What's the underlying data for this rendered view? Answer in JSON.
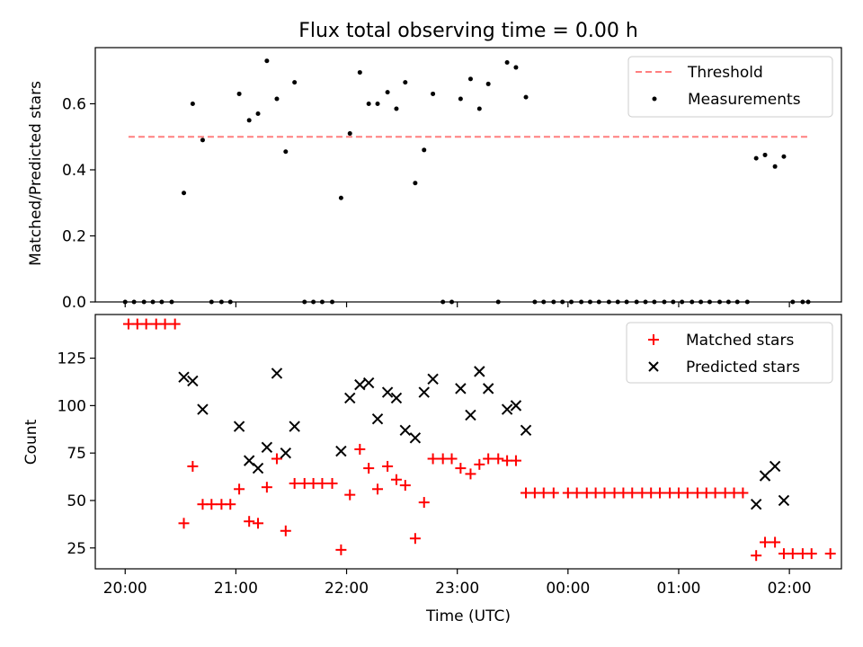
{
  "figure": {
    "title": "Flux total observing time = 0.00 h",
    "xlabel": "Time (UTC)",
    "x_ticks": [
      "20:00",
      "21:00",
      "22:00",
      "23:00",
      "00:00",
      "01:00",
      "02:00"
    ]
  },
  "chart_data": [
    {
      "type": "scatter",
      "ylabel": "Matched/Predicted stars",
      "xlim": [
        -0.27,
        6.47
      ],
      "ylim": [
        0,
        0.77
      ],
      "y_ticks": [
        "0.0",
        "0.2",
        "0.4",
        "0.6"
      ],
      "legend_position": "top-right",
      "threshold": {
        "name": "Threshold",
        "value": 0.5,
        "x_range": [
          0.03,
          6.17
        ],
        "color": "#ff7f7f"
      },
      "series": [
        {
          "name": "Measurements",
          "color": "#000000",
          "points": [
            [
              0.0,
              0
            ],
            [
              0.08,
              0
            ],
            [
              0.17,
              0
            ],
            [
              0.25,
              0
            ],
            [
              0.33,
              0
            ],
            [
              0.42,
              0
            ],
            [
              0.53,
              0.33
            ],
            [
              0.61,
              0.6
            ],
            [
              0.7,
              0.49
            ],
            [
              0.78,
              0
            ],
            [
              0.87,
              0
            ],
            [
              0.95,
              0
            ],
            [
              1.03,
              0.63
            ],
            [
              1.12,
              0.55
            ],
            [
              1.2,
              0.57
            ],
            [
              1.28,
              0.73
            ],
            [
              1.37,
              0.615
            ],
            [
              1.45,
              0.455
            ],
            [
              1.53,
              0.665
            ],
            [
              1.62,
              0
            ],
            [
              1.7,
              0
            ],
            [
              1.78,
              0
            ],
            [
              1.87,
              0
            ],
            [
              1.95,
              0.315
            ],
            [
              2.03,
              0.51
            ],
            [
              2.12,
              0.695
            ],
            [
              2.2,
              0.6
            ],
            [
              2.28,
              0.6
            ],
            [
              2.37,
              0.635
            ],
            [
              2.45,
              0.585
            ],
            [
              2.53,
              0.665
            ],
            [
              2.62,
              0.36
            ],
            [
              2.7,
              0.46
            ],
            [
              2.78,
              0.63
            ],
            [
              2.87,
              0
            ],
            [
              2.95,
              0
            ],
            [
              3.03,
              0.615
            ],
            [
              3.12,
              0.675
            ],
            [
              3.2,
              0.585
            ],
            [
              3.28,
              0.66
            ],
            [
              3.37,
              0
            ],
            [
              3.45,
              0.725
            ],
            [
              3.53,
              0.71
            ],
            [
              3.62,
              0.62
            ],
            [
              3.7,
              0
            ],
            [
              3.78,
              0
            ],
            [
              3.87,
              0
            ],
            [
              3.95,
              0
            ],
            [
              4.03,
              0
            ],
            [
              4.12,
              0
            ],
            [
              4.2,
              0
            ],
            [
              4.28,
              0
            ],
            [
              4.37,
              0
            ],
            [
              4.45,
              0
            ],
            [
              4.53,
              0
            ],
            [
              4.62,
              0
            ],
            [
              4.7,
              0
            ],
            [
              4.78,
              0
            ],
            [
              4.87,
              0
            ],
            [
              4.95,
              0
            ],
            [
              5.03,
              0
            ],
            [
              5.12,
              0
            ],
            [
              5.2,
              0
            ],
            [
              5.28,
              0
            ],
            [
              5.37,
              0
            ],
            [
              5.45,
              0
            ],
            [
              5.53,
              0
            ],
            [
              5.62,
              0
            ],
            [
              5.7,
              0.435
            ],
            [
              5.78,
              0.445
            ],
            [
              5.87,
              0.41
            ],
            [
              5.95,
              0.44
            ],
            [
              6.03,
              0
            ],
            [
              6.12,
              0
            ],
            [
              6.17,
              0
            ]
          ]
        }
      ]
    },
    {
      "type": "scatter",
      "ylabel": "Count",
      "xlim": [
        -0.27,
        6.47
      ],
      "ylim": [
        14,
        148
      ],
      "y_ticks": [
        "25",
        "50",
        "75",
        "100",
        "125"
      ],
      "legend_position": "top-right",
      "series": [
        {
          "name": "Matched stars",
          "marker": "plus",
          "color": "#ff0000",
          "points": [
            [
              0.03,
              143
            ],
            [
              0.11,
              143
            ],
            [
              0.19,
              143
            ],
            [
              0.28,
              143
            ],
            [
              0.36,
              143
            ],
            [
              0.45,
              143
            ],
            [
              0.53,
              38
            ],
            [
              0.61,
              68
            ],
            [
              0.7,
              48
            ],
            [
              0.78,
              48
            ],
            [
              0.87,
              48
            ],
            [
              0.95,
              48
            ],
            [
              1.03,
              56
            ],
            [
              1.12,
              39
            ],
            [
              1.2,
              38
            ],
            [
              1.28,
              57
            ],
            [
              1.37,
              72
            ],
            [
              1.45,
              34
            ],
            [
              1.53,
              59
            ],
            [
              1.62,
              59
            ],
            [
              1.7,
              59
            ],
            [
              1.78,
              59
            ],
            [
              1.87,
              59
            ],
            [
              1.95,
              24
            ],
            [
              2.03,
              53
            ],
            [
              2.12,
              77
            ],
            [
              2.2,
              67
            ],
            [
              2.28,
              56
            ],
            [
              2.37,
              68
            ],
            [
              2.45,
              61
            ],
            [
              2.53,
              58
            ],
            [
              2.62,
              30
            ],
            [
              2.7,
              49
            ],
            [
              2.78,
              72
            ],
            [
              2.87,
              72
            ],
            [
              2.95,
              72
            ],
            [
              3.03,
              67
            ],
            [
              3.12,
              64
            ],
            [
              3.2,
              69
            ],
            [
              3.28,
              72
            ],
            [
              3.37,
              72
            ],
            [
              3.45,
              71
            ],
            [
              3.53,
              71
            ],
            [
              3.62,
              54
            ],
            [
              3.7,
              54
            ],
            [
              3.78,
              54
            ],
            [
              3.87,
              54
            ],
            [
              4.0,
              54
            ],
            [
              4.08,
              54
            ],
            [
              4.17,
              54
            ],
            [
              4.25,
              54
            ],
            [
              4.33,
              54
            ],
            [
              4.42,
              54
            ],
            [
              4.5,
              54
            ],
            [
              4.58,
              54
            ],
            [
              4.67,
              54
            ],
            [
              4.75,
              54
            ],
            [
              4.83,
              54
            ],
            [
              4.92,
              54
            ],
            [
              5.0,
              54
            ],
            [
              5.08,
              54
            ],
            [
              5.17,
              54
            ],
            [
              5.25,
              54
            ],
            [
              5.33,
              54
            ],
            [
              5.42,
              54
            ],
            [
              5.5,
              54
            ],
            [
              5.58,
              54
            ],
            [
              5.7,
              21
            ],
            [
              5.78,
              28
            ],
            [
              5.87,
              28
            ],
            [
              5.95,
              22
            ],
            [
              6.03,
              22
            ],
            [
              6.12,
              22
            ],
            [
              6.2,
              22
            ],
            [
              6.37,
              22
            ]
          ]
        },
        {
          "name": "Predicted stars",
          "marker": "x",
          "color": "#000000",
          "points": [
            [
              0.53,
              115
            ],
            [
              0.61,
              113
            ],
            [
              0.7,
              98
            ],
            [
              1.03,
              89
            ],
            [
              1.12,
              71
            ],
            [
              1.2,
              67
            ],
            [
              1.28,
              78
            ],
            [
              1.37,
              117
            ],
            [
              1.45,
              75
            ],
            [
              1.53,
              89
            ],
            [
              1.95,
              76
            ],
            [
              2.03,
              104
            ],
            [
              2.12,
              111
            ],
            [
              2.2,
              112
            ],
            [
              2.28,
              93
            ],
            [
              2.37,
              107
            ],
            [
              2.45,
              104
            ],
            [
              2.53,
              87
            ],
            [
              2.62,
              83
            ],
            [
              2.7,
              107
            ],
            [
              2.78,
              114
            ],
            [
              3.03,
              109
            ],
            [
              3.12,
              95
            ],
            [
              3.2,
              118
            ],
            [
              3.28,
              109
            ],
            [
              3.45,
              98
            ],
            [
              3.53,
              100
            ],
            [
              3.62,
              87
            ],
            [
              5.7,
              48
            ],
            [
              5.78,
              63
            ],
            [
              5.87,
              68
            ],
            [
              5.95,
              50
            ]
          ]
        }
      ]
    }
  ]
}
